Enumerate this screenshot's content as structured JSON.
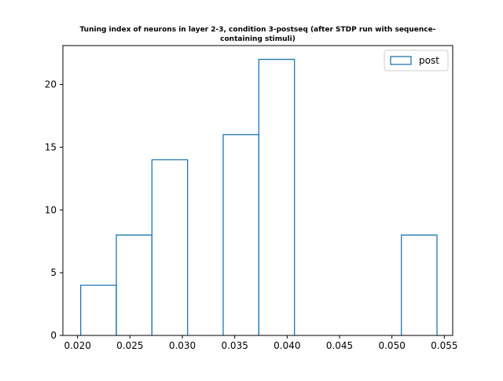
{
  "chart_data": {
    "type": "histogram",
    "title": "Tuning index of neurons in layer 2-3, condition 3-postseq (after STDP run with sequence-containing stimuli)",
    "xlabel": "",
    "ylabel": "",
    "xlim": [
      0.0186,
      0.0558
    ],
    "ylim": [
      0,
      23.1
    ],
    "x_ticks": [
      "0.020",
      "0.025",
      "0.030",
      "0.035",
      "0.040",
      "0.045",
      "0.050",
      "0.055"
    ],
    "y_ticks": [
      "0",
      "5",
      "10",
      "15",
      "20"
    ],
    "legend_position": "top-right",
    "series": [
      {
        "name": "post",
        "color": "#1f77b4",
        "bin_edges": [
          0.0203,
          0.0237,
          0.0271,
          0.0305,
          0.0339,
          0.0373,
          0.0407,
          0.0441,
          0.0475,
          0.0509,
          0.0543
        ],
        "counts": [
          4,
          8,
          14,
          0,
          16,
          22,
          0,
          0,
          0,
          8
        ]
      }
    ]
  }
}
